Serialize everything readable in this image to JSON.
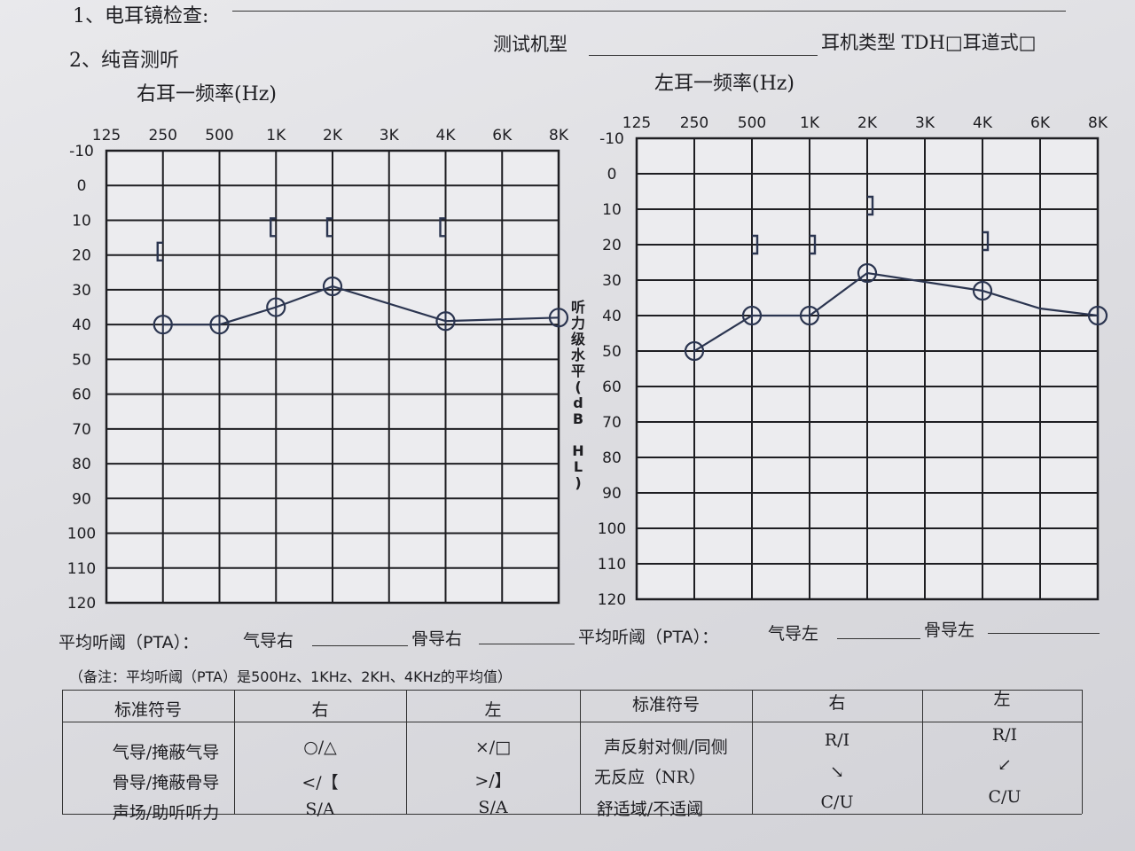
{
  "header": {
    "otoscopy_label": "1、电耳镜检查:",
    "pure_tone_label": "2、纯音测听",
    "machine_label": "测试机型",
    "earphone_label": "耳机类型 TDH□耳道式□"
  },
  "chart_data": [
    {
      "type": "line",
      "title": "右耳一频率(Hz)",
      "x_tick_labels": [
        "125",
        "250",
        "500",
        "1K",
        "2K",
        "3K",
        "4K",
        "6K",
        "8K"
      ],
      "y_tick_labels": [
        "-10",
        "0",
        "10",
        "20",
        "30",
        "40",
        "50",
        "60",
        "70",
        "80",
        "90",
        "100",
        "110",
        "120"
      ],
      "ylim": [
        -10,
        120
      ],
      "y_inverted": true,
      "ylabel": "听力级水平(dB HL)",
      "grid": true,
      "series": [
        {
          "symbol": "circle",
          "x": [
            "250",
            "500",
            "1K",
            "2K",
            "4K",
            "8K"
          ],
          "values": [
            40,
            40,
            35,
            29,
            39,
            38
          ],
          "line_points": [
            [
              250,
              40
            ],
            [
              500,
              40
            ],
            [
              1000,
              35
            ],
            [
              2000,
              29
            ],
            [
              4000,
              39
            ],
            [
              8000,
              38
            ]
          ]
        },
        {
          "symbol": "bracket-right-masked",
          "x": [
            "250",
            "1K",
            "2K",
            "4K"
          ],
          "values": [
            19,
            12,
            12,
            12
          ]
        }
      ]
    },
    {
      "type": "line",
      "title": "左耳一频率(Hz)",
      "x_tick_labels": [
        "125",
        "250",
        "500",
        "1K",
        "2K",
        "3K",
        "4K",
        "6K",
        "8K"
      ],
      "y_tick_labels": [
        "-10",
        "0",
        "10",
        "20",
        "30",
        "40",
        "50",
        "60",
        "70",
        "80",
        "90",
        "100",
        "110",
        "120"
      ],
      "ylim": [
        -10,
        120
      ],
      "y_inverted": true,
      "grid": true,
      "series": [
        {
          "symbol": "circle",
          "x": [
            "250",
            "500",
            "1K",
            "2K",
            "4K",
            "8K"
          ],
          "values": [
            50,
            40,
            40,
            28,
            33,
            40
          ],
          "line_points": [
            [
              250,
              50
            ],
            [
              500,
              40
            ],
            [
              750,
              40
            ],
            [
              1000,
              40
            ],
            [
              1500,
              34
            ],
            [
              2000,
              28
            ],
            [
              4000,
              33
            ],
            [
              6000,
              38
            ],
            [
              8000,
              40
            ]
          ]
        },
        {
          "symbol": "bracket-left-masked",
          "x": [
            "500",
            "1K",
            "2K",
            "4K"
          ],
          "values": [
            20,
            20,
            9,
            19
          ]
        }
      ]
    }
  ],
  "pta": {
    "label": "平均听阈（PTA）：",
    "air_right": "气导右",
    "bone_right": "骨导右",
    "air_left": "气导左",
    "bone_left": "骨导左"
  },
  "note": "（备注：平均听阈（PTA）是500Hz、1KHz、2KH、4KHz的平均值）",
  "legend": {
    "headers": [
      "标准符号",
      "右",
      "左",
      "标准符号",
      "右",
      "左"
    ],
    "rows": [
      [
        "气导/掩蔽气导",
        "○/△",
        "×/□",
        "声反射对侧/同侧",
        "R/I",
        "R/I"
      ],
      [
        "骨导/掩蔽骨导",
        "</【",
        ">/】",
        "无反应（NR）",
        "↘",
        "↙"
      ],
      [
        "声场/助听听力",
        "S/A",
        "S/A",
        "舒适域/不适阈",
        "C/U",
        "C/U"
      ]
    ]
  }
}
